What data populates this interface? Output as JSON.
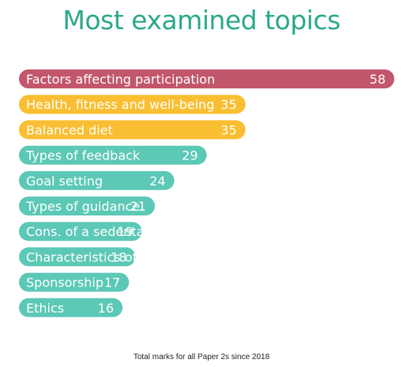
{
  "chart_data": {
    "type": "bar",
    "orientation": "horizontal",
    "title": "Most examined topics",
    "categories": [
      "Factors affecting participation",
      "Health, fitness and well-being",
      "Balanced diet",
      "Types of feedback",
      "Goal setting",
      "Types of guidance",
      "Cons. of a sedentary lifestyle",
      "Characteristics of skill",
      "Sponsorship",
      "Ethics"
    ],
    "values": [
      58,
      35,
      35,
      29,
      24,
      21,
      19,
      18,
      17,
      16
    ],
    "colors": [
      "#c2566a",
      "#f9be31",
      "#f9be31",
      "#5cc8b6",
      "#5cc8b6",
      "#5cc8b6",
      "#5cc8b6",
      "#5cc8b6",
      "#5cc8b6",
      "#5cc8b6"
    ],
    "caption": "Total marks for all Paper 2s since 2018",
    "grid": false
  }
}
